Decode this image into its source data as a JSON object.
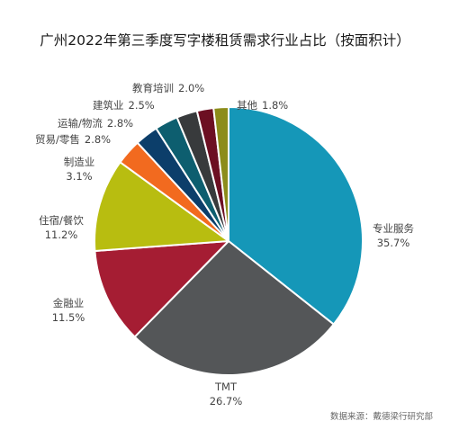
{
  "chart_data": {
    "type": "pie",
    "title": "广州2022年第三季度写字楼租赁需求行业占比（按面积计）",
    "source": "数据来源：戴德梁行研究部",
    "slices": [
      {
        "name": "专业服务",
        "value": 35.7,
        "value_label": "35.7%",
        "color": "#1597b8"
      },
      {
        "name": "TMT",
        "value": 26.7,
        "value_label": "26.7%",
        "color": "#545658"
      },
      {
        "name": "金融业",
        "value": 11.5,
        "value_label": "11.5%",
        "color": "#a51d33"
      },
      {
        "name": "住宿/餐饮",
        "value": 11.2,
        "value_label": "11.2%",
        "color": "#b8bd10"
      },
      {
        "name": "制造业",
        "value": 3.1,
        "value_label": "3.1%",
        "color": "#f26a1f"
      },
      {
        "name": "贸易/零售",
        "value": 2.8,
        "value_label": "2.8%",
        "color": "#0c3e6a"
      },
      {
        "name": "运输/物流",
        "value": 2.8,
        "value_label": "2.8%",
        "color": "#0d5e6f"
      },
      {
        "name": "建筑业",
        "value": 2.5,
        "value_label": "2.5%",
        "color": "#383a3c"
      },
      {
        "name": "教育培训",
        "value": 2.0,
        "value_label": "2.0%",
        "color": "#6c0f22"
      },
      {
        "name": "其他",
        "value": 1.8,
        "value_label": "1.8%",
        "color": "#8c8c1a"
      }
    ],
    "start_angle_deg": 0,
    "direction": "clockwise",
    "legend": "none",
    "grid": false
  }
}
